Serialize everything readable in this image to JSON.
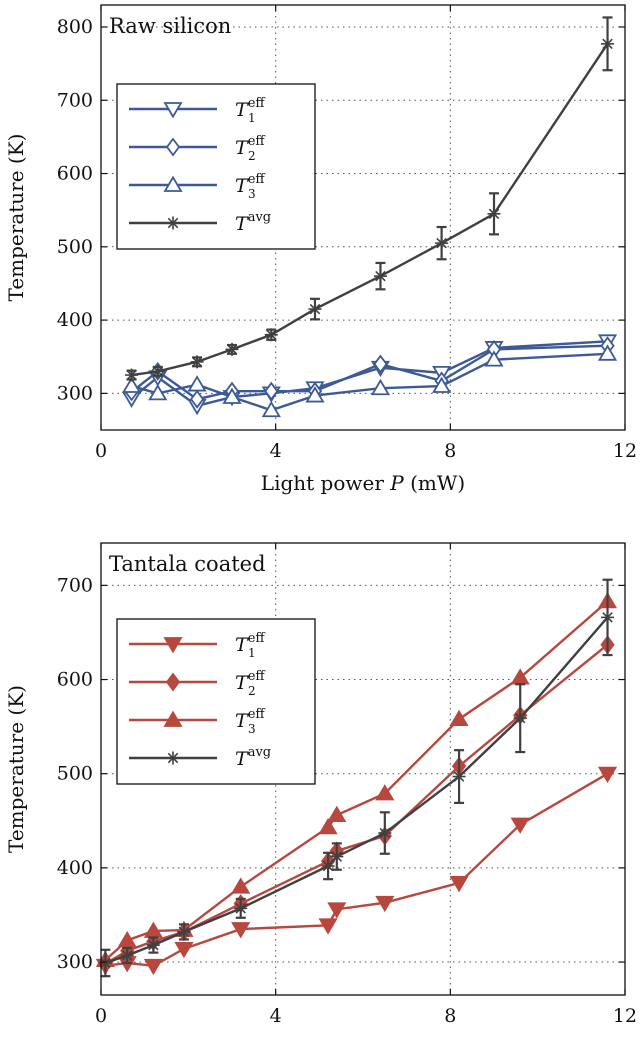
{
  "chart_data": [
    {
      "type": "line",
      "title": "Raw silicon",
      "xlabel": "Light power",
      "xlabel_var": "P",
      "xlabel_unit": "(mW)",
      "ylabel": "Temperature (K)",
      "xlim": [
        0,
        12
      ],
      "ylim": [
        250,
        830
      ],
      "xticks": [
        0,
        4,
        8,
        12
      ],
      "yticks": [
        300,
        400,
        500,
        600,
        700,
        800
      ],
      "grid": true,
      "legend_position": "upper-left",
      "series": [
        {
          "name": "T1 eff",
          "label_base": "T",
          "label_sub": "1",
          "label_sup": "eff",
          "color": "#3d5a96",
          "marker": "triangle-down-open",
          "x": [
            0.7,
            1.3,
            2.2,
            3.0,
            3.9,
            4.9,
            6.4,
            7.8,
            9.0,
            11.6
          ],
          "y": [
            293,
            322,
            283,
            295,
            300,
            307,
            335,
            328,
            362,
            371
          ]
        },
        {
          "name": "T2 eff",
          "label_base": "T",
          "label_sub": "2",
          "label_sup": "eff",
          "color": "#3d5a96",
          "marker": "diamond-open",
          "x": [
            0.7,
            1.3,
            2.2,
            3.0,
            3.9,
            4.9,
            6.4,
            7.8,
            9.0,
            11.6
          ],
          "y": [
            302,
            330,
            292,
            303,
            303,
            303,
            340,
            317,
            360,
            365
          ]
        },
        {
          "name": "T3 eff",
          "label_base": "T",
          "label_sub": "3",
          "label_sup": "eff",
          "color": "#3d5a96",
          "marker": "triangle-up-open",
          "x": [
            0.7,
            1.3,
            2.2,
            3.0,
            3.9,
            4.9,
            6.4,
            7.8,
            9.0,
            11.6
          ],
          "y": [
            310,
            300,
            312,
            295,
            277,
            297,
            307,
            310,
            346,
            354
          ]
        },
        {
          "name": "T avg",
          "label_base": "T",
          "label_sub": "",
          "label_sup": "avg",
          "color": "#404040",
          "marker": "asterisk",
          "x": [
            0.7,
            1.3,
            2.2,
            3.0,
            3.9,
            4.9,
            6.4,
            7.8,
            9.0,
            11.6
          ],
          "y": [
            325,
            330,
            343,
            360,
            380,
            415,
            460,
            505,
            545,
            777
          ],
          "err": [
            6,
            6,
            6,
            6,
            7,
            14,
            18,
            22,
            28,
            36
          ]
        }
      ]
    },
    {
      "type": "line",
      "title": "Tantala coated",
      "xlabel": "Light power",
      "xlabel_var": "P",
      "xlabel_unit": "(mW)",
      "ylabel": "Temperature (K)",
      "xlim": [
        0,
        12
      ],
      "ylim": [
        265,
        745
      ],
      "xticks": [
        0,
        4,
        8,
        12
      ],
      "yticks": [
        300,
        400,
        500,
        600,
        700
      ],
      "grid": true,
      "legend_position": "upper-left",
      "series": [
        {
          "name": "T1 eff",
          "label_base": "T",
          "label_sub": "1",
          "label_sup": "eff",
          "color": "#b8473e",
          "marker": "triangle-down-filled",
          "x": [
            0.1,
            0.6,
            1.2,
            1.9,
            3.2,
            5.2,
            5.4,
            6.5,
            8.2,
            9.6,
            11.6
          ],
          "y": [
            296,
            299,
            296,
            314,
            335,
            339,
            356,
            363,
            384,
            446,
            500
          ]
        },
        {
          "name": "T2 eff",
          "label_base": "T",
          "label_sub": "2",
          "label_sup": "eff",
          "color": "#b8473e",
          "marker": "diamond-filled",
          "x": [
            0.1,
            0.6,
            1.2,
            1.9,
            3.2,
            5.2,
            5.4,
            6.5,
            8.2,
            9.6,
            11.6
          ],
          "y": [
            298,
            312,
            322,
            332,
            362,
            407,
            418,
            434,
            508,
            562,
            637
          ]
        },
        {
          "name": "T3 eff",
          "label_base": "T",
          "label_sub": "3",
          "label_sup": "eff",
          "color": "#b8473e",
          "marker": "triangle-up-filled",
          "x": [
            0.1,
            0.6,
            1.2,
            1.9,
            3.2,
            5.2,
            5.4,
            6.5,
            8.2,
            9.6,
            11.6
          ],
          "y": [
            302,
            323,
            333,
            334,
            380,
            443,
            456,
            479,
            558,
            602,
            683
          ]
        },
        {
          "name": "T avg",
          "label_base": "T",
          "label_sub": "",
          "label_sup": "avg",
          "color": "#404040",
          "marker": "asterisk",
          "x": [
            0.1,
            0.6,
            1.2,
            1.9,
            3.2,
            5.2,
            5.4,
            6.5,
            8.2,
            9.6,
            11.6
          ],
          "y": [
            299,
            307,
            318,
            332,
            357,
            402,
            412,
            437,
            497,
            559,
            666
          ],
          "err": [
            14,
            8,
            8,
            8,
            10,
            14,
            14,
            22,
            28,
            36,
            40
          ]
        }
      ]
    }
  ]
}
